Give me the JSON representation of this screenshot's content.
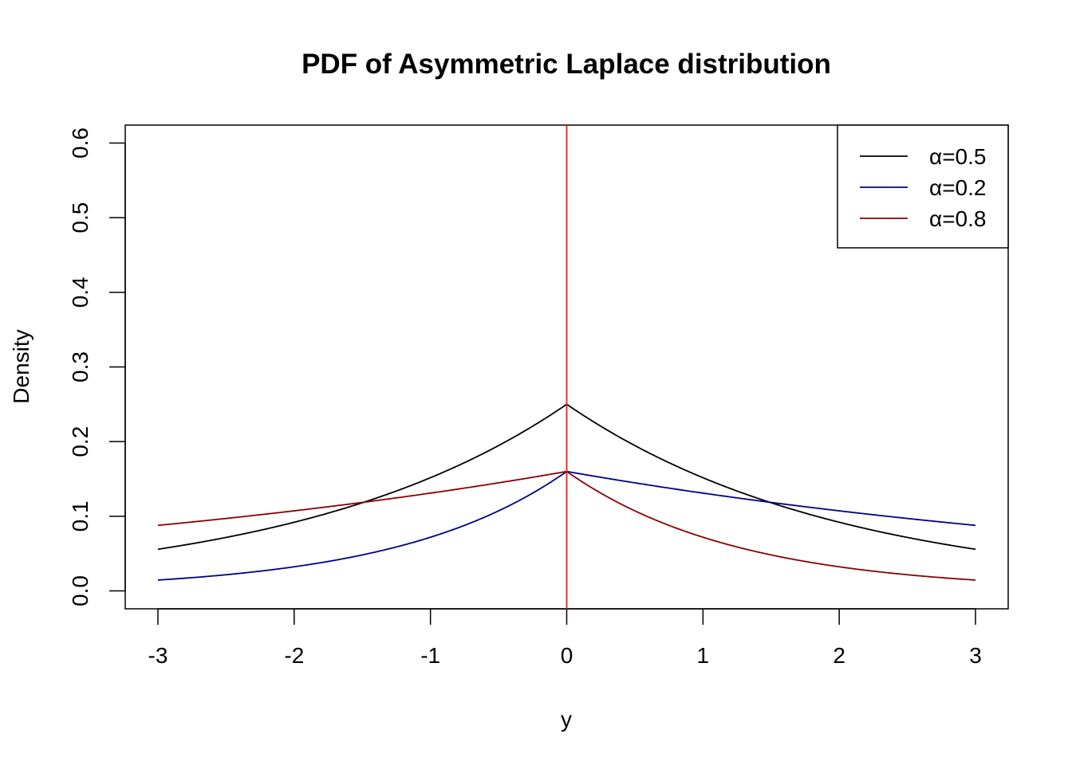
{
  "chart_data": {
    "type": "line",
    "title": "PDF of Asymmetric Laplace distribution",
    "xlabel": "y",
    "ylabel": "Density",
    "xlim": [
      -3.24,
      3.24
    ],
    "ylim": [
      -0.024,
      0.624
    ],
    "x_ticks": [
      -3,
      -2,
      -1,
      0,
      1,
      2,
      3
    ],
    "x_tick_labels": [
      "-3",
      "-2",
      "-1",
      "0",
      "1",
      "2",
      "3"
    ],
    "y_ticks": [
      0.0,
      0.1,
      0.2,
      0.3,
      0.4,
      0.5,
      0.6
    ],
    "y_tick_labels": [
      "0.0",
      "0.1",
      "0.2",
      "0.3",
      "0.4",
      "0.5",
      "0.6"
    ],
    "grid": false,
    "legend_position": "top-right",
    "vline": {
      "x": 0,
      "color": "#e0201b"
    },
    "series": [
      {
        "name": "α=0.5",
        "alpha": 0.5,
        "color": "#000000"
      },
      {
        "name": "α=0.2",
        "alpha": 0.2,
        "color": "#00008b"
      },
      {
        "name": "α=0.8",
        "alpha": 0.8,
        "color": "#8b0000"
      }
    ]
  }
}
